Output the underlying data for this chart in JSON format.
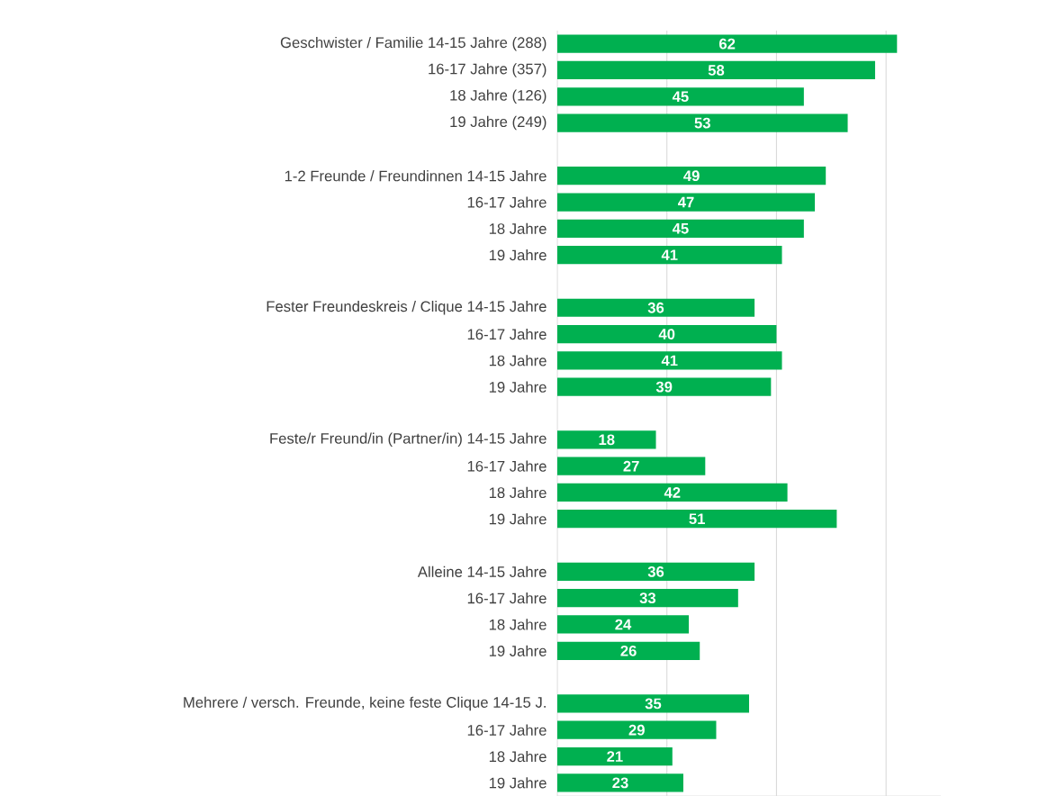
{
  "chart_data": {
    "type": "bar",
    "orientation": "horizontal",
    "categories": [
      "Geschwister / Familie 14-15 Jahre (288)",
      "16-17 Jahre (357)",
      "18 Jahre (126)",
      "19 Jahre (249)",
      null,
      "1-2 Freunde / Freundinnen 14-15 Jahre",
      "16-17 Jahre",
      "18 Jahre",
      "19 Jahre",
      null,
      "Fester Freundeskreis / Clique 14-15 Jahre",
      "16-17 Jahre",
      "18 Jahre",
      "19 Jahre",
      null,
      "Feste/r Freund/in (Partner/in) 14-15 Jahre",
      "16-17 Jahre",
      "18 Jahre",
      "19 Jahre",
      null,
      "Alleine 14-15 Jahre",
      "16-17 Jahre",
      "18 Jahre",
      "19 Jahre",
      null,
      "Mehrere / versch. Freunde, keine feste Clique 14-15 J.",
      "16-17 Jahre",
      "18 Jahre",
      "19 Jahre"
    ],
    "values": [
      62,
      58,
      45,
      53,
      null,
      49,
      47,
      45,
      41,
      null,
      36,
      40,
      41,
      39,
      null,
      18,
      27,
      42,
      51,
      null,
      36,
      33,
      24,
      26,
      null,
      35,
      29,
      21,
      23
    ],
    "color": "#00b050",
    "xlim": [
      0,
      70
    ],
    "xticks": [
      {
        "value": 0,
        "label": null
      },
      {
        "value": 20,
        "label": null
      },
      {
        "value": 40,
        "label": null
      },
      {
        "value": 60,
        "label": null
      }
    ],
    "grid": "x",
    "tick_labels": "y",
    "data_labels": true
  }
}
